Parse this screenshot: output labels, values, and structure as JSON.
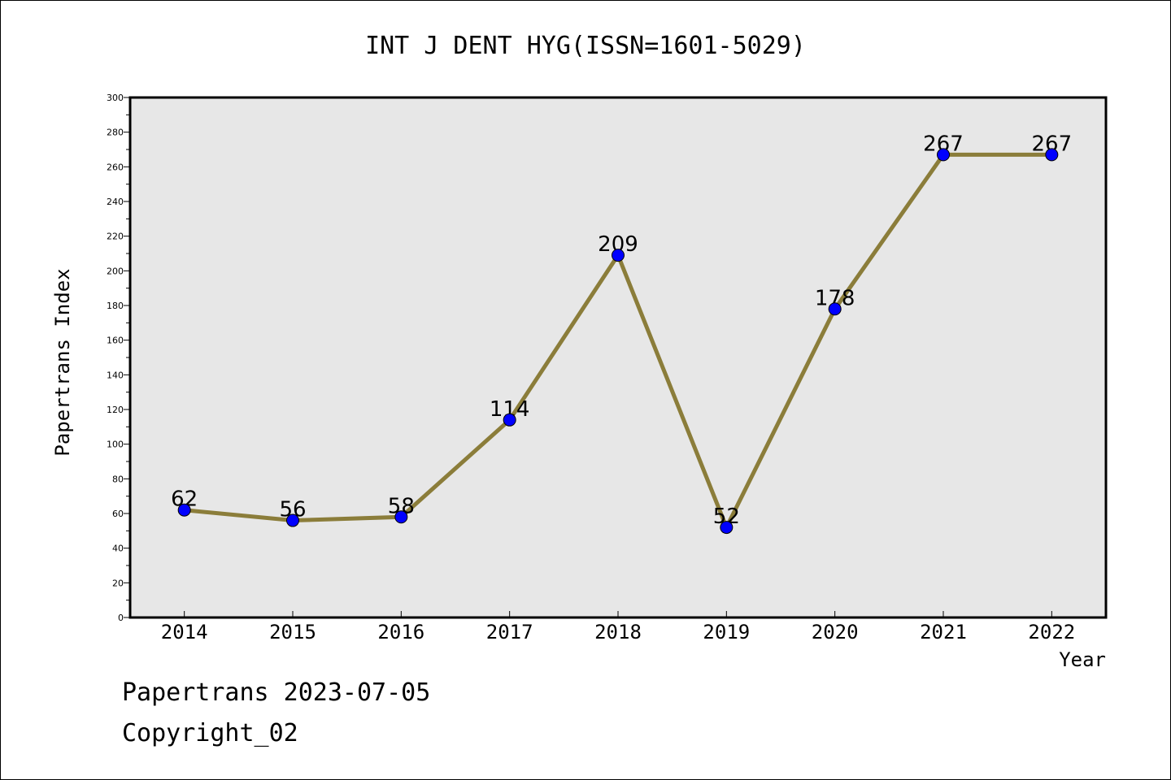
{
  "chart_data": {
    "type": "line",
    "title": "INT J DENT HYG(ISSN=1601-5029)",
    "xlabel": "Year",
    "ylabel": "Papertrans Index",
    "categories": [
      "2014",
      "2015",
      "2016",
      "2017",
      "2018",
      "2019",
      "2020",
      "2021",
      "2022"
    ],
    "values": [
      62,
      56,
      58,
      114,
      209,
      52,
      178,
      267,
      267
    ],
    "data_labels": [
      "62",
      "56",
      "58",
      "114",
      "209",
      "52",
      "178",
      "267",
      "267"
    ],
    "ylim": [
      0,
      300
    ],
    "yticks": [
      0,
      20,
      40,
      60,
      80,
      100,
      120,
      140,
      160,
      180,
      200,
      220,
      240,
      260,
      280,
      300
    ],
    "grid": false,
    "legend": "none",
    "colors": {
      "line": "#8b7d3a",
      "marker": "#0000ff",
      "plot_background": "#e7e7e7"
    }
  },
  "footer": {
    "line1": "Papertrans 2023-07-05",
    "line2": "Copyright_02"
  }
}
